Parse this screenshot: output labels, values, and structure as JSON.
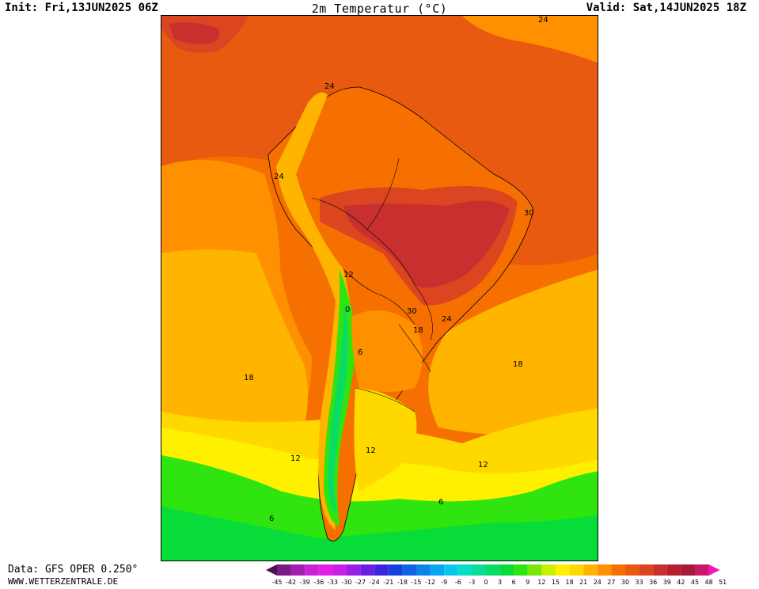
{
  "header": {
    "init": "Init: Fri,13JUN2025 06Z",
    "title": "2m Temperatur (°C)",
    "valid": "Valid: Sat,14JUN2025 18Z"
  },
  "footer": {
    "data_source": "Data: GFS OPER 0.250°",
    "site": "WWW.WETTERZENTRALE.DE"
  },
  "map_labels": [
    "24",
    "24",
    "24",
    "30",
    "12",
    "0",
    "6",
    "30",
    "24",
    "18",
    "18",
    "18",
    "12",
    "12",
    "12",
    "6",
    "6"
  ],
  "legend": {
    "ticks": [
      "-45",
      "-42",
      "-39",
      "-36",
      "-33",
      "-30",
      "-27",
      "-24",
      "-21",
      "-18",
      "-15",
      "-12",
      "-9",
      "-6",
      "-3",
      "0",
      "3",
      "6",
      "9",
      "12",
      "15",
      "18",
      "21",
      "24",
      "27",
      "30",
      "33",
      "36",
      "39",
      "42",
      "45",
      "48",
      "51"
    ],
    "colors": [
      "#4a0f52",
      "#7a1a84",
      "#a51cb0",
      "#cc22d6",
      "#e11fe6",
      "#c81fe8",
      "#9a1ee6",
      "#6a1fe2",
      "#3a24de",
      "#1640dc",
      "#0f62e4",
      "#0a84ea",
      "#08a6f0",
      "#08c8ea",
      "#08dcc4",
      "#08dc96",
      "#08dc66",
      "#08dc38",
      "#30e410",
      "#78e808",
      "#c8f008",
      "#fff000",
      "#ffd800",
      "#ffb400",
      "#ff9000",
      "#f57000",
      "#e85a10",
      "#db4520",
      "#c83030",
      "#b42030",
      "#a51a3c",
      "#c8186a",
      "#ee18b4"
    ]
  }
}
